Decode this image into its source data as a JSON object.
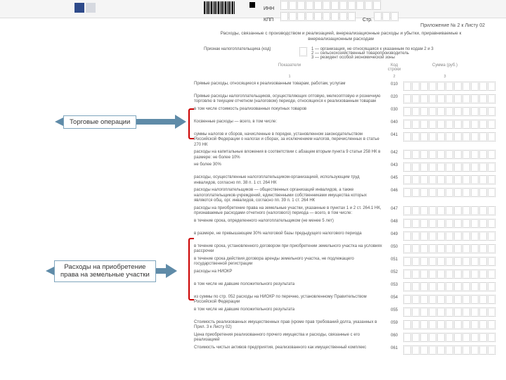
{
  "header": {
    "inn_label": "ИНН",
    "kpp_label": "КПП",
    "str_label": "Стр."
  },
  "page_title": "Приложение № 2 к Листу 02",
  "page_subtitle": "Расходы, связанные с производством и реализацией, внереализационные расходы и убытки, приравниваемые к внереализационным расходам",
  "taxpayer_label": "Признак налогоплательщика (код)",
  "taxpayer_opts": [
    "1 — организация, не относящаяся к указанным по кодам 2 и 3",
    "2 — сельскохозяйственный товаропроизводитель",
    "3 — резидент особой экономической зоны"
  ],
  "cols": {
    "c1": "Показатели",
    "c2": "Код строки",
    "c3": "Сумма (руб.)",
    "n1": "1",
    "n2": "2",
    "n3": "3"
  },
  "rows": [
    {
      "text": "Прямые расходы, относящиеся к реализованным товарам, работам, услугам",
      "code": "010"
    },
    {
      "text": "Прямые расходы налогоплательщиков, осуществляющих оптовую, мелкооптовую и розничную торговлю в текущем отчетном (налоговом) периоде, относящихся к реализованным товарам",
      "code": "020"
    },
    {
      "text": "в том числе стоимость реализованных покупных товаров",
      "code": "030"
    },
    {
      "text": "Косвенные расходы — всего,\nв том числе:",
      "code": "040"
    },
    {
      "text": "суммы налогов и сборов, начисленные в порядке, установленном законодательством Российской Федерации о налогах и сборах, за исключением налогов, перечисленных в статье 270 НК",
      "code": "041"
    },
    {
      "text": "расходы на капитальные вложения в соответствии с абзацем вторым пункта 9 статьи 258 НК в размере:\n    не более 10%",
      "code": "042"
    },
    {
      "text": "    не более 30%",
      "code": "043"
    },
    {
      "text": "расходы, осуществленные налогоплательщиком-организацией, использующим труд инвалидов, согласно пп. 38 п. 1 ст. 264 НК",
      "code": "045"
    },
    {
      "text": "расходы налогоплательщиков — общественных организаций инвалидов, а также налогоплательщиков-учреждений, единственными собственниками имущества которых являются общ. орг. инвалидов, согласно пп. 39 п. 1 ст. 264 НК",
      "code": "046"
    },
    {
      "text": "расходы на приобретение права на земельные участки, указанные в пунктах 1 и 2 ст. 264.1 НК, признаваемые расходами отчетного (налогового) периода — всего, в том числе:",
      "code": "047"
    },
    {
      "text": "в течение срока, определенного налогоплательщиком (не менее 5 лет)",
      "code": "048"
    },
    {
      "text": "в размере, не превышающем 30% налоговой базы предыдущего налогового периода",
      "code": "049"
    },
    {
      "text": "в течение срока, установленного договором при приобретении земельного участка на условиях рассрочки",
      "code": "050"
    },
    {
      "text": "в течение срока действия договора аренды земельного участка, не подлежащего государственной регистрации",
      "code": "051"
    },
    {
      "text": "расходы на НИОКР",
      "code": "052"
    },
    {
      "text": "в том числе не давшие положительного результата",
      "code": "053"
    },
    {
      "text": "из суммы по стр. 052 расходы на НИОКР по перечню, установленному Правительством Российской Федерации",
      "code": "054"
    },
    {
      "text": "в том числе не давшие положительного результата",
      "code": "055"
    },
    {
      "text": "Стоимость реализованных имущественных прав (кроме прав требований долга, указанных в Прил. 3 к Листу 02)",
      "code": "059"
    },
    {
      "text": "Цена приобретения реализованного прочего имущества и расходы, связанные с его реализацией",
      "code": "060"
    },
    {
      "text": "Стоимость чистых активов предприятия, реализованного как имущественный комплекс",
      "code": "061"
    }
  ],
  "callouts": {
    "a": "Торговые операции",
    "b": "Расходы на приобретение права на земельные участки"
  },
  "colors": {
    "bracket": "#c00000",
    "arrow": "#5f8ba8",
    "arrow_border": "#7fa5bd",
    "accent_blue": "#2e4a8a"
  }
}
